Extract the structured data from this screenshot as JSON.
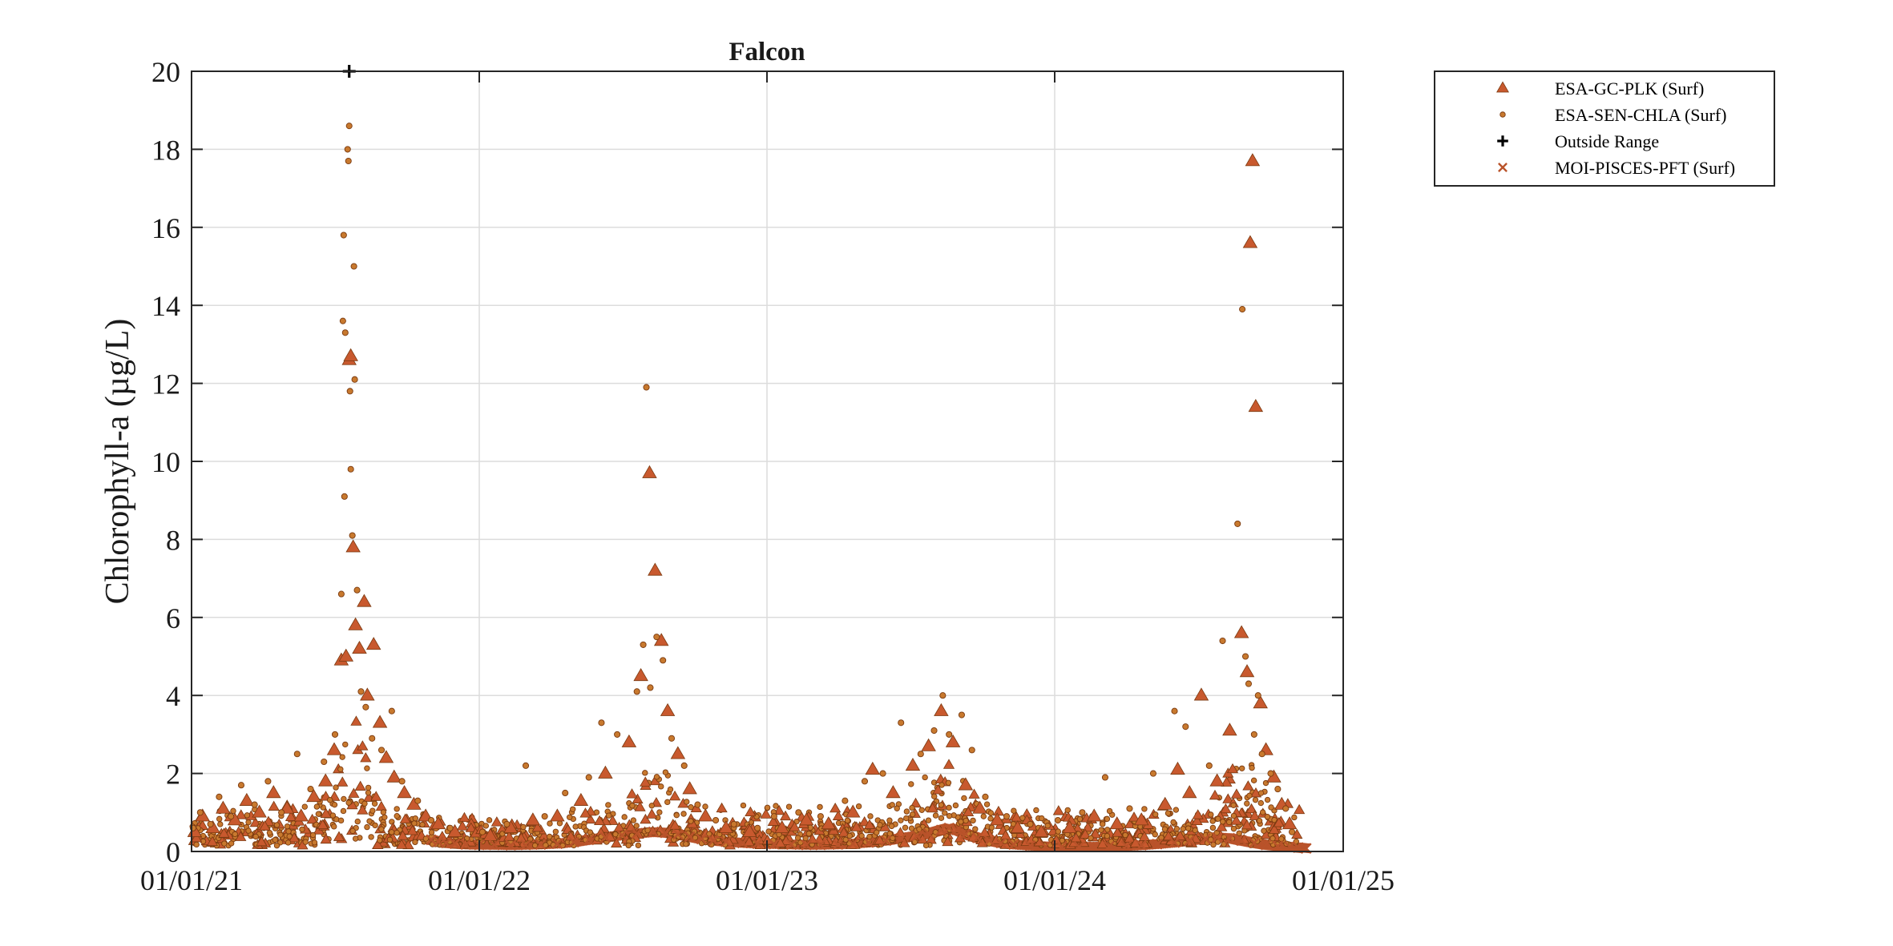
{
  "colors": {
    "plk": "#c8592e",
    "sen": "#c8792e",
    "pisces": "#b9532a",
    "outside": "#000000",
    "axis": "#262626",
    "grid": "#dcdcdc",
    "marker_edge": "#7a3a10"
  },
  "chart_data": {
    "type": "scatter",
    "title": "Falcon",
    "ylabel": "Chlorophyll-a (µg/L)",
    "xlabel": "",
    "xlim": [
      "2021-01-01",
      "2025-01-01"
    ],
    "ylim": [
      0,
      20
    ],
    "grid": true,
    "legend_placement": "outside-top-right",
    "x_ticks": [
      "2021-01-01",
      "2022-01-01",
      "2023-01-01",
      "2024-01-01",
      "2025-01-01"
    ],
    "x_tick_labels": [
      "01/01/21",
      "01/01/22",
      "01/01/23",
      "01/01/24",
      "01/01/25"
    ],
    "y_ticks": [
      0,
      2,
      4,
      6,
      8,
      10,
      12,
      14,
      16,
      18,
      20
    ],
    "y_tick_labels": [
      "0",
      "2",
      "4",
      "6",
      "8",
      "10",
      "12",
      "14",
      "16",
      "18",
      "20"
    ],
    "legend": [
      {
        "name": "ESA-GC-PLK (Surf)",
        "marker": "triangle",
        "color_key": "plk"
      },
      {
        "name": "ESA-SEN-CHLA (Surf)",
        "marker": "circle",
        "color_key": "sen"
      },
      {
        "name": "Outside Range",
        "marker": "plus",
        "color_key": "outside"
      },
      {
        "name": "MOI-PISCES-PFT (Surf)",
        "marker": "x",
        "color_key": "pisces"
      }
    ],
    "series": [
      {
        "name": "ESA-GC-PLK (Surf)",
        "marker": "triangle",
        "points": [
          [
            "2021-01-05",
            0.5
          ],
          [
            "2021-01-15",
            0.9
          ],
          [
            "2021-01-28",
            0.6
          ],
          [
            "2021-02-10",
            1.1
          ],
          [
            "2021-02-25",
            0.8
          ],
          [
            "2021-03-12",
            1.3
          ],
          [
            "2021-03-28",
            1.0
          ],
          [
            "2021-04-15",
            1.5
          ],
          [
            "2021-05-02",
            1.1
          ],
          [
            "2021-05-20",
            0.9
          ],
          [
            "2021-06-05",
            1.4
          ],
          [
            "2021-06-20",
            1.8
          ],
          [
            "2021-07-01",
            2.6
          ],
          [
            "2021-07-10",
            4.9
          ],
          [
            "2021-07-16",
            5.0
          ],
          [
            "2021-07-20",
            12.6
          ],
          [
            "2021-07-22",
            12.7
          ],
          [
            "2021-07-25",
            7.8
          ],
          [
            "2021-07-28",
            5.8
          ],
          [
            "2021-08-02",
            5.2
          ],
          [
            "2021-08-08",
            6.4
          ],
          [
            "2021-08-12",
            4.0
          ],
          [
            "2021-08-20",
            5.3
          ],
          [
            "2021-08-28",
            3.3
          ],
          [
            "2021-09-05",
            2.4
          ],
          [
            "2021-09-15",
            1.9
          ],
          [
            "2021-09-28",
            1.5
          ],
          [
            "2021-10-10",
            1.2
          ],
          [
            "2021-10-25",
            0.9
          ],
          [
            "2021-11-10",
            0.7
          ],
          [
            "2021-12-01",
            0.5
          ],
          [
            "2022-01-15",
            0.4
          ],
          [
            "2022-02-10",
            0.6
          ],
          [
            "2022-03-10",
            0.8
          ],
          [
            "2022-04-10",
            0.9
          ],
          [
            "2022-05-10",
            1.3
          ],
          [
            "2022-06-10",
            2.0
          ],
          [
            "2022-07-10",
            2.8
          ],
          [
            "2022-07-25",
            4.5
          ],
          [
            "2022-08-05",
            9.7
          ],
          [
            "2022-08-12",
            7.2
          ],
          [
            "2022-08-20",
            5.4
          ],
          [
            "2022-08-28",
            3.6
          ],
          [
            "2022-09-10",
            2.5
          ],
          [
            "2022-09-25",
            1.6
          ],
          [
            "2022-10-15",
            0.9
          ],
          [
            "2022-11-10",
            0.6
          ],
          [
            "2022-12-10",
            0.5
          ],
          [
            "2023-01-20",
            0.6
          ],
          [
            "2023-02-20",
            0.8
          ],
          [
            "2023-03-20",
            0.7
          ],
          [
            "2023-04-20",
            1.0
          ],
          [
            "2023-05-15",
            2.1
          ],
          [
            "2023-06-10",
            1.5
          ],
          [
            "2023-07-05",
            2.2
          ],
          [
            "2023-07-25",
            2.7
          ],
          [
            "2023-08-10",
            3.6
          ],
          [
            "2023-08-25",
            2.8
          ],
          [
            "2023-09-10",
            1.7
          ],
          [
            "2023-09-28",
            1.1
          ],
          [
            "2023-10-20",
            0.8
          ],
          [
            "2023-11-15",
            0.6
          ],
          [
            "2023-12-15",
            0.5
          ],
          [
            "2024-01-20",
            0.6
          ],
          [
            "2024-02-20",
            0.9
          ],
          [
            "2024-03-20",
            0.7
          ],
          [
            "2024-04-20",
            0.8
          ],
          [
            "2024-05-20",
            1.2
          ],
          [
            "2024-06-05",
            2.1
          ],
          [
            "2024-06-20",
            1.5
          ],
          [
            "2024-07-05",
            4.0
          ],
          [
            "2024-07-25",
            1.8
          ],
          [
            "2024-08-10",
            3.1
          ],
          [
            "2024-08-25",
            5.6
          ],
          [
            "2024-09-01",
            4.6
          ],
          [
            "2024-09-05",
            15.6
          ],
          [
            "2024-09-08",
            17.7
          ],
          [
            "2024-09-12",
            11.4
          ],
          [
            "2024-09-18",
            3.8
          ],
          [
            "2024-09-25",
            2.6
          ],
          [
            "2024-10-05",
            1.9
          ],
          [
            "2024-10-15",
            1.2
          ],
          [
            "2024-10-25",
            0.7
          ]
        ]
      },
      {
        "name": "ESA-SEN-CHLA (Surf)",
        "marker": "circle",
        "points": [
          [
            "2021-01-03",
            0.6
          ],
          [
            "2021-01-12",
            1.0
          ],
          [
            "2021-01-25",
            0.7
          ],
          [
            "2021-02-05",
            1.4
          ],
          [
            "2021-02-20",
            0.9
          ],
          [
            "2021-03-05",
            1.7
          ],
          [
            "2021-03-22",
            1.2
          ],
          [
            "2021-04-08",
            1.8
          ],
          [
            "2021-04-25",
            1.0
          ],
          [
            "2021-05-15",
            2.5
          ],
          [
            "2021-06-01",
            1.6
          ],
          [
            "2021-06-18",
            2.3
          ],
          [
            "2021-07-02",
            3.0
          ],
          [
            "2021-07-10",
            6.6
          ],
          [
            "2021-07-12",
            13.6
          ],
          [
            "2021-07-13",
            15.8
          ],
          [
            "2021-07-14",
            9.1
          ],
          [
            "2021-07-15",
            13.3
          ],
          [
            "2021-07-18",
            18.0
          ],
          [
            "2021-07-19",
            17.7
          ],
          [
            "2021-07-20",
            18.6
          ],
          [
            "2021-07-21",
            11.8
          ],
          [
            "2021-07-22",
            9.8
          ],
          [
            "2021-07-24",
            8.1
          ],
          [
            "2021-07-26",
            15.0
          ],
          [
            "2021-07-27",
            12.1
          ],
          [
            "2021-07-30",
            6.7
          ],
          [
            "2021-08-04",
            4.1
          ],
          [
            "2021-08-10",
            3.7
          ],
          [
            "2021-08-18",
            2.9
          ],
          [
            "2021-08-30",
            2.6
          ],
          [
            "2021-09-12",
            3.6
          ],
          [
            "2021-09-25",
            1.8
          ],
          [
            "2021-10-15",
            1.3
          ],
          [
            "2021-11-01",
            0.8
          ],
          [
            "2021-11-25",
            0.6
          ],
          [
            "2022-01-05",
            0.5
          ],
          [
            "2022-02-05",
            0.7
          ],
          [
            "2022-03-01",
            2.2
          ],
          [
            "2022-03-25",
            0.9
          ],
          [
            "2022-04-20",
            1.5
          ],
          [
            "2022-05-20",
            1.9
          ],
          [
            "2022-06-05",
            3.3
          ],
          [
            "2022-06-25",
            3.0
          ],
          [
            "2022-07-20",
            4.1
          ],
          [
            "2022-07-28",
            5.3
          ],
          [
            "2022-08-01",
            11.9
          ],
          [
            "2022-08-06",
            4.2
          ],
          [
            "2022-08-14",
            5.5
          ],
          [
            "2022-08-22",
            4.9
          ],
          [
            "2022-09-02",
            2.9
          ],
          [
            "2022-09-18",
            2.2
          ],
          [
            "2022-10-05",
            1.2
          ],
          [
            "2022-10-28",
            0.8
          ],
          [
            "2022-11-20",
            0.7
          ],
          [
            "2022-12-20",
            0.6
          ],
          [
            "2023-01-10",
            0.9
          ],
          [
            "2023-02-10",
            1.0
          ],
          [
            "2023-03-10",
            0.9
          ],
          [
            "2023-04-10",
            1.3
          ],
          [
            "2023-05-05",
            1.8
          ],
          [
            "2023-05-28",
            2.0
          ],
          [
            "2023-06-20",
            3.3
          ],
          [
            "2023-07-15",
            2.5
          ],
          [
            "2023-08-01",
            3.1
          ],
          [
            "2023-08-12",
            4.0
          ],
          [
            "2023-08-20",
            3.0
          ],
          [
            "2023-09-05",
            3.5
          ],
          [
            "2023-09-18",
            2.6
          ],
          [
            "2023-10-05",
            1.4
          ],
          [
            "2023-11-01",
            0.9
          ],
          [
            "2023-12-01",
            0.7
          ],
          [
            "2024-01-05",
            0.8
          ],
          [
            "2024-02-05",
            1.0
          ],
          [
            "2024-03-05",
            1.9
          ],
          [
            "2024-04-05",
            1.1
          ],
          [
            "2024-05-05",
            2.0
          ],
          [
            "2024-06-01",
            3.6
          ],
          [
            "2024-06-15",
            3.2
          ],
          [
            "2024-07-15",
            2.2
          ],
          [
            "2024-08-01",
            5.4
          ],
          [
            "2024-08-20",
            8.4
          ],
          [
            "2024-08-26",
            13.9
          ],
          [
            "2024-08-30",
            5.0
          ],
          [
            "2024-09-03",
            4.3
          ],
          [
            "2024-09-10",
            3.0
          ],
          [
            "2024-09-15",
            4.0
          ],
          [
            "2024-09-20",
            2.5
          ],
          [
            "2024-10-01",
            2.0
          ],
          [
            "2024-10-10",
            1.6
          ],
          [
            "2024-10-20",
            1.1
          ],
          [
            "2024-10-28",
            0.5
          ]
        ]
      },
      {
        "name": "Outside Range",
        "marker": "plus",
        "points": [
          [
            "2021-07-20",
            20.0
          ]
        ]
      },
      {
        "name": "MOI-PISCES-PFT (Surf)",
        "marker": "x",
        "points": [
          [
            "2021-11-01",
            0.3
          ],
          [
            "2021-11-10",
            0.25
          ],
          [
            "2021-11-20",
            0.22
          ],
          [
            "2021-12-01",
            0.2
          ],
          [
            "2021-12-15",
            0.18
          ],
          [
            "2022-01-01",
            0.17
          ],
          [
            "2022-01-20",
            0.17
          ],
          [
            "2022-02-10",
            0.16
          ],
          [
            "2022-03-01",
            0.17
          ],
          [
            "2022-03-20",
            0.18
          ],
          [
            "2022-04-10",
            0.2
          ],
          [
            "2022-05-01",
            0.24
          ],
          [
            "2022-05-20",
            0.3
          ],
          [
            "2022-06-10",
            0.36
          ],
          [
            "2022-07-01",
            0.42
          ],
          [
            "2022-07-20",
            0.46
          ],
          [
            "2022-08-10",
            0.5
          ],
          [
            "2022-08-25",
            0.48
          ],
          [
            "2022-09-10",
            0.44
          ],
          [
            "2022-09-25",
            0.38
          ],
          [
            "2022-10-10",
            0.32
          ],
          [
            "2022-10-25",
            0.28
          ],
          [
            "2022-11-10",
            0.25
          ],
          [
            "2022-12-01",
            0.22
          ],
          [
            "2022-12-20",
            0.2
          ],
          [
            "2023-01-10",
            0.19
          ],
          [
            "2023-02-01",
            0.18
          ],
          [
            "2023-02-20",
            0.17
          ],
          [
            "2023-03-10",
            0.17
          ],
          [
            "2023-04-01",
            0.18
          ],
          [
            "2023-04-20",
            0.2
          ],
          [
            "2023-05-10",
            0.23
          ],
          [
            "2023-06-01",
            0.28
          ],
          [
            "2023-06-20",
            0.34
          ],
          [
            "2023-07-10",
            0.4
          ],
          [
            "2023-07-25",
            0.46
          ],
          [
            "2023-08-10",
            0.55
          ],
          [
            "2023-08-20",
            0.6
          ],
          [
            "2023-08-30",
            0.55
          ],
          [
            "2023-09-10",
            0.45
          ],
          [
            "2023-09-25",
            0.35
          ],
          [
            "2023-10-10",
            0.28
          ],
          [
            "2023-10-25",
            0.22
          ],
          [
            "2023-11-10",
            0.18
          ],
          [
            "2023-12-01",
            0.15
          ],
          [
            "2023-12-20",
            0.13
          ],
          [
            "2024-01-10",
            0.12
          ],
          [
            "2024-02-01",
            0.12
          ],
          [
            "2024-02-20",
            0.12
          ],
          [
            "2024-03-10",
            0.13
          ],
          [
            "2024-04-01",
            0.14
          ],
          [
            "2024-04-20",
            0.16
          ],
          [
            "2024-05-10",
            0.19
          ],
          [
            "2024-06-01",
            0.23
          ],
          [
            "2024-06-20",
            0.28
          ],
          [
            "2024-07-10",
            0.33
          ],
          [
            "2024-07-25",
            0.36
          ],
          [
            "2024-08-10",
            0.34
          ],
          [
            "2024-08-25",
            0.28
          ],
          [
            "2024-09-10",
            0.22
          ],
          [
            "2024-09-25",
            0.17
          ],
          [
            "2024-10-10",
            0.14
          ],
          [
            "2024-10-25",
            0.12
          ],
          [
            "2024-11-05",
            0.1
          ],
          [
            "2024-11-15",
            0.08
          ]
        ]
      }
    ]
  }
}
